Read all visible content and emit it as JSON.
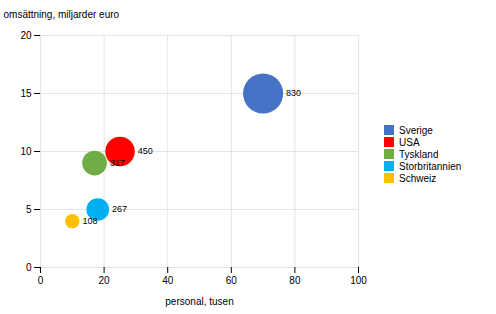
{
  "chart_data": {
    "type": "bubble",
    "xlabel": "personal, tusen",
    "ylabel": "omsättning, miljarder euro",
    "xlim": [
      0,
      100
    ],
    "ylim": [
      0,
      20
    ],
    "xticks": [
      0,
      20,
      40,
      60,
      80,
      100
    ],
    "yticks": [
      0,
      5,
      10,
      15,
      20
    ],
    "grid": true,
    "legend": "right",
    "data_labels": true,
    "series": [
      {
        "name": "Sverige",
        "color": "#4472C4",
        "x": [
          70
        ],
        "values": [
          15
        ],
        "sizes": [
          830
        ]
      },
      {
        "name": "USA",
        "color": "#FF0000",
        "x": [
          25
        ],
        "values": [
          10
        ],
        "sizes": [
          450
        ]
      },
      {
        "name": "Tyskland",
        "color": "#70AD47",
        "x": [
          17
        ],
        "values": [
          9
        ],
        "sizes": [
          317
        ]
      },
      {
        "name": "Storbritannien",
        "color": "#00B0F0",
        "x": [
          18
        ],
        "values": [
          5
        ],
        "sizes": [
          267
        ]
      },
      {
        "name": "Schweiz",
        "color": "#FFC000",
        "x": [
          10
        ],
        "values": [
          4
        ],
        "sizes": [
          108
        ]
      }
    ]
  }
}
